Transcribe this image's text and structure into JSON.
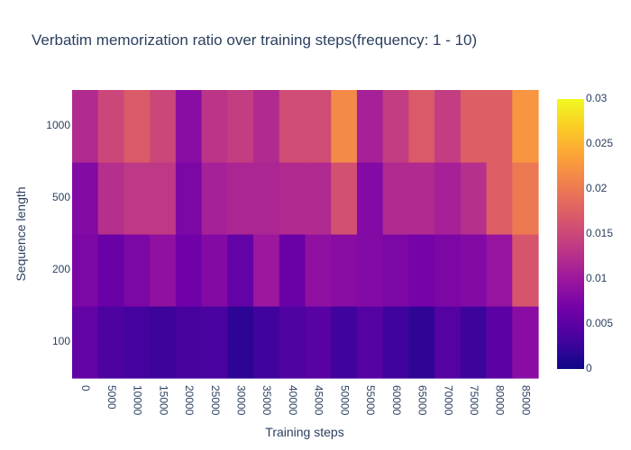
{
  "chart_data": {
    "type": "heatmap",
    "title": "Verbatim memorization ratio over training steps(frequency: 1 - 10)",
    "xlabel": "Training steps",
    "ylabel": "Sequence length",
    "x": [
      "0",
      "5000",
      "10000",
      "15000",
      "20000",
      "25000",
      "30000",
      "35000",
      "40000",
      "45000",
      "50000",
      "55000",
      "60000",
      "65000",
      "70000",
      "75000",
      "80000",
      "85000"
    ],
    "y": [
      "100",
      "200",
      "500",
      "1000"
    ],
    "z": [
      [
        0.0055,
        0.0038,
        0.0032,
        0.0028,
        0.0035,
        0.0036,
        0.0018,
        0.003,
        0.004,
        0.0048,
        0.003,
        0.0045,
        0.003,
        0.002,
        0.0045,
        0.0028,
        0.005,
        0.0085
      ],
      [
        0.0075,
        0.006,
        0.0075,
        0.009,
        0.0065,
        0.008,
        0.0055,
        0.01,
        0.006,
        0.009,
        0.0085,
        0.008,
        0.0075,
        0.007,
        0.0075,
        0.008,
        0.0095,
        0.0165
      ],
      [
        0.008,
        0.0125,
        0.0135,
        0.0135,
        0.0075,
        0.011,
        0.0115,
        0.0115,
        0.012,
        0.012,
        0.016,
        0.008,
        0.012,
        0.012,
        0.011,
        0.0125,
        0.0175,
        0.02
      ],
      [
        0.012,
        0.015,
        0.017,
        0.015,
        0.0085,
        0.013,
        0.014,
        0.012,
        0.0155,
        0.0155,
        0.0215,
        0.011,
        0.014,
        0.017,
        0.014,
        0.0175,
        0.0175,
        0.0225
      ]
    ],
    "zmin": 0,
    "zmax": 0.03,
    "colorscale": "plasma",
    "colorbar_ticks": [
      "0",
      "0.005",
      "0.01",
      "0.015",
      "0.02",
      "0.025",
      "0.03"
    ],
    "grid": false,
    "colorbar": "right"
  }
}
